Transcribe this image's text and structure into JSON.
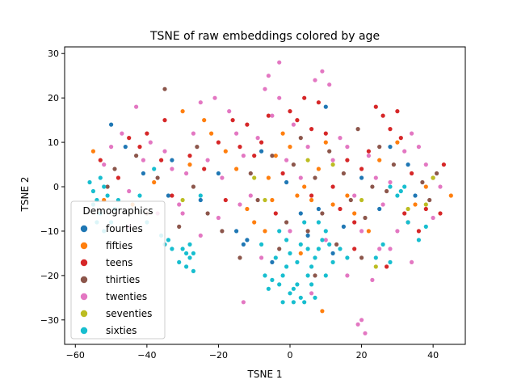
{
  "chart_data": {
    "type": "scatter",
    "title": "TSNE of raw embeddings colored by age",
    "xlabel": "TSNE 1",
    "ylabel": "TSNE 2",
    "xlim": [
      -63,
      49
    ],
    "ylim": [
      -35.5,
      31.5
    ],
    "xticks": [
      -60,
      -40,
      -20,
      0,
      20,
      40
    ],
    "yticks": [
      -30,
      -20,
      -10,
      0,
      10,
      20,
      30
    ],
    "grid": false,
    "legend": {
      "title": "Demographics",
      "placement": "lower-left"
    },
    "series": [
      {
        "name": "fourties",
        "color": "#1f77b4",
        "points": [
          [
            -50,
            14
          ],
          [
            -46,
            9
          ],
          [
            -41,
            3
          ],
          [
            -33,
            6
          ],
          [
            -12,
            -12
          ],
          [
            -15,
            -10
          ],
          [
            -13,
            -13
          ],
          [
            -5,
            -17
          ],
          [
            -1,
            1
          ],
          [
            3,
            -6
          ],
          [
            8,
            -5
          ],
          [
            12,
            -15
          ],
          [
            15,
            -9
          ],
          [
            20,
            2
          ],
          [
            25,
            -5
          ],
          [
            28,
            9
          ],
          [
            33,
            5
          ],
          [
            -8,
            8
          ],
          [
            -20,
            3
          ],
          [
            35,
            -2
          ],
          [
            10,
            18
          ],
          [
            5,
            -11
          ],
          [
            -34,
            -2
          ],
          [
            -25,
            -3
          ]
        ]
      },
      {
        "name": "fifties",
        "color": "#ff7f0e",
        "points": [
          [
            -55,
            8
          ],
          [
            -52,
            -3
          ],
          [
            -44,
            -4
          ],
          [
            -38,
            1
          ],
          [
            -30,
            17
          ],
          [
            -24,
            15
          ],
          [
            -22,
            12
          ],
          [
            -18,
            8
          ],
          [
            -15,
            4
          ],
          [
            -10,
            -8
          ],
          [
            -7,
            -10
          ],
          [
            -5,
            -3
          ],
          [
            -4,
            7
          ],
          [
            -2,
            12
          ],
          [
            0,
            9
          ],
          [
            2,
            -2
          ],
          [
            4,
            0
          ],
          [
            6,
            -3
          ],
          [
            8,
            4
          ],
          [
            10,
            10
          ],
          [
            12,
            -4
          ],
          [
            16,
            -2
          ],
          [
            18,
            -6
          ],
          [
            22,
            -10
          ],
          [
            25,
            6
          ],
          [
            30,
            10
          ],
          [
            35,
            -4
          ],
          [
            38,
            0
          ],
          [
            45,
            -2
          ],
          [
            -12,
            -5
          ],
          [
            -6,
            2
          ],
          [
            3,
            -15
          ],
          [
            9,
            -28
          ],
          [
            -28,
            5
          ]
        ]
      },
      {
        "name": "teens",
        "color": "#d62728",
        "points": [
          [
            -53,
            6
          ],
          [
            -48,
            2
          ],
          [
            -42,
            9
          ],
          [
            -40,
            12
          ],
          [
            -35,
            15
          ],
          [
            -33,
            -2
          ],
          [
            -28,
            7
          ],
          [
            -24,
            4
          ],
          [
            -20,
            10
          ],
          [
            -18,
            -3
          ],
          [
            -16,
            15
          ],
          [
            -12,
            14
          ],
          [
            -10,
            7
          ],
          [
            -8,
            10
          ],
          [
            -6,
            16
          ],
          [
            -4,
            -6
          ],
          [
            -2,
            3
          ],
          [
            0,
            17
          ],
          [
            2,
            15
          ],
          [
            4,
            20
          ],
          [
            6,
            13
          ],
          [
            8,
            19
          ],
          [
            10,
            12
          ],
          [
            12,
            0
          ],
          [
            14,
            -5
          ],
          [
            16,
            6
          ],
          [
            18,
            -8
          ],
          [
            20,
            4
          ],
          [
            22,
            8
          ],
          [
            24,
            18
          ],
          [
            26,
            16
          ],
          [
            28,
            13
          ],
          [
            30,
            17
          ],
          [
            31,
            11
          ],
          [
            32,
            -6
          ],
          [
            34,
            3
          ],
          [
            36,
            -10
          ],
          [
            38,
            -5
          ],
          [
            40,
            2
          ],
          [
            42,
            -6
          ],
          [
            43,
            5
          ],
          [
            -36,
            6
          ],
          [
            -45,
            11
          ],
          [
            6,
            -2
          ],
          [
            -14,
            9
          ],
          [
            18,
            -14
          ],
          [
            27,
            -18
          ]
        ]
      },
      {
        "name": "thirties",
        "color": "#8c564b",
        "points": [
          [
            -51,
            0
          ],
          [
            -49,
            4
          ],
          [
            -43,
            7
          ],
          [
            -37,
            2
          ],
          [
            -35,
            22
          ],
          [
            -31,
            -9
          ],
          [
            -27,
            0
          ],
          [
            -23,
            -6
          ],
          [
            -19,
            -10
          ],
          [
            -14,
            -16
          ],
          [
            -11,
            3
          ],
          [
            -9,
            -3
          ],
          [
            -5,
            7
          ],
          [
            -3,
            -14
          ],
          [
            -1,
            -8
          ],
          [
            1,
            5
          ],
          [
            3,
            11
          ],
          [
            5,
            -10
          ],
          [
            7,
            2
          ],
          [
            9,
            -6
          ],
          [
            11,
            8
          ],
          [
            13,
            -13
          ],
          [
            15,
            3
          ],
          [
            17,
            -3
          ],
          [
            19,
            13
          ],
          [
            21,
            -7
          ],
          [
            23,
            0
          ],
          [
            25,
            9
          ],
          [
            27,
            -1
          ],
          [
            29,
            5
          ],
          [
            33,
            -8
          ],
          [
            37,
            1
          ],
          [
            39,
            -3
          ],
          [
            41,
            3
          ],
          [
            20,
            -16
          ],
          [
            -26,
            9
          ],
          [
            -40,
            -6
          ],
          [
            7,
            -20
          ]
        ]
      },
      {
        "name": "twenties",
        "color": "#e377c2",
        "points": [
          [
            -52,
            5
          ],
          [
            -50,
            9
          ],
          [
            -47,
            12
          ],
          [
            -45,
            -1
          ],
          [
            -43,
            18
          ],
          [
            -41,
            6
          ],
          [
            -39,
            10
          ],
          [
            -37,
            -6
          ],
          [
            -35,
            8
          ],
          [
            -33,
            4
          ],
          [
            -31,
            -4
          ],
          [
            -29,
            3
          ],
          [
            -27,
            12
          ],
          [
            -25,
            19
          ],
          [
            -23,
            6
          ],
          [
            -21,
            20
          ],
          [
            -19,
            2
          ],
          [
            -17,
            17
          ],
          [
            -15,
            12
          ],
          [
            -13,
            7
          ],
          [
            -11,
            -2
          ],
          [
            -9,
            11
          ],
          [
            -7,
            22
          ],
          [
            -6,
            25
          ],
          [
            -5,
            16
          ],
          [
            -3,
            20
          ],
          [
            -1,
            6
          ],
          [
            1,
            14
          ],
          [
            3,
            2
          ],
          [
            5,
            9
          ],
          [
            7,
            24
          ],
          [
            9,
            26
          ],
          [
            11,
            23
          ],
          [
            12,
            6
          ],
          [
            14,
            11
          ],
          [
            16,
            9
          ],
          [
            18,
            -2
          ],
          [
            20,
            -10
          ],
          [
            19,
            -31
          ],
          [
            20,
            -30
          ],
          [
            21,
            -33
          ],
          [
            22,
            7
          ],
          [
            24,
            2
          ],
          [
            26,
            -4
          ],
          [
            28,
            1
          ],
          [
            30,
            -10
          ],
          [
            32,
            8
          ],
          [
            34,
            12
          ],
          [
            36,
            9
          ],
          [
            38,
            5
          ],
          [
            40,
            -7
          ],
          [
            42,
            0
          ],
          [
            -45,
            -9
          ],
          [
            -25,
            -11
          ],
          [
            -20,
            -7
          ],
          [
            -13,
            -26
          ],
          [
            -14,
            -4
          ],
          [
            0,
            -10
          ],
          [
            10,
            -12
          ],
          [
            16,
            -20
          ],
          [
            -8,
            -16
          ],
          [
            -3,
            28
          ],
          [
            -30,
            -6
          ],
          [
            6,
            -24
          ],
          [
            28,
            -14
          ],
          [
            34,
            -17
          ],
          [
            23,
            -21
          ],
          [
            25,
            -14
          ]
        ]
      },
      {
        "name": "seventies",
        "color": "#bcbd22",
        "points": [
          [
            -30,
            -3
          ],
          [
            -10,
            2
          ],
          [
            -7,
            -3
          ],
          [
            5,
            6
          ],
          [
            12,
            5
          ],
          [
            20,
            -3
          ],
          [
            24,
            -18
          ],
          [
            33,
            -5
          ],
          [
            38,
            -4
          ],
          [
            40,
            2
          ]
        ]
      },
      {
        "name": "sixties",
        "color": "#17becf",
        "points": [
          [
            -56,
            1
          ],
          [
            -55,
            -1
          ],
          [
            -54,
            -3
          ],
          [
            -53,
            2
          ],
          [
            -52,
            0
          ],
          [
            -51,
            -2
          ],
          [
            -55,
            -4
          ],
          [
            -53,
            -6
          ],
          [
            -54,
            -8
          ],
          [
            -52,
            -10
          ],
          [
            -50,
            -8
          ],
          [
            -49,
            -5
          ],
          [
            -48,
            -3
          ],
          [
            -36,
            -11
          ],
          [
            -35,
            -13
          ],
          [
            -34,
            -12
          ],
          [
            -33,
            -14
          ],
          [
            -30,
            -14
          ],
          [
            -29,
            -15
          ],
          [
            -28,
            -16
          ],
          [
            -27,
            -15
          ],
          [
            -28,
            -13
          ],
          [
            -31,
            -17
          ],
          [
            -29,
            -18
          ],
          [
            -27,
            -19
          ],
          [
            -5,
            -21
          ],
          [
            -3,
            -22
          ],
          [
            -2,
            -20
          ],
          [
            0,
            -24
          ],
          [
            1,
            -23
          ],
          [
            2,
            -22
          ],
          [
            3,
            -25
          ],
          [
            4,
            -26
          ],
          [
            5,
            -20
          ],
          [
            6,
            -18
          ],
          [
            7,
            -16
          ],
          [
            8,
            -14
          ],
          [
            9,
            -12
          ],
          [
            10,
            -10
          ],
          [
            11,
            -13
          ],
          [
            12,
            -17
          ],
          [
            2,
            -17
          ],
          [
            0,
            -15
          ],
          [
            -1,
            -18
          ],
          [
            -4,
            -16
          ],
          [
            3,
            -13
          ],
          [
            5,
            -14
          ],
          [
            6,
            -22
          ],
          [
            7,
            -25
          ],
          [
            1,
            -26
          ],
          [
            -2,
            -26
          ],
          [
            -6,
            -23
          ],
          [
            -7,
            -20
          ],
          [
            -3,
            -10
          ],
          [
            -1,
            -12
          ],
          [
            4,
            -8
          ],
          [
            8,
            -8
          ],
          [
            14,
            -14
          ],
          [
            16,
            -16
          ],
          [
            24,
            -16
          ],
          [
            26,
            -13
          ],
          [
            28,
            -17
          ],
          [
            30,
            -2
          ],
          [
            31,
            -1
          ],
          [
            32,
            0
          ],
          [
            28,
            0
          ],
          [
            33,
            -8
          ],
          [
            36,
            -12
          ],
          [
            38,
            -9
          ],
          [
            -25,
            -2
          ],
          [
            -38,
            4
          ],
          [
            -42,
            -2
          ],
          [
            -40,
            -8
          ],
          [
            10,
            -20
          ],
          [
            -8,
            -13
          ]
        ]
      }
    ]
  }
}
